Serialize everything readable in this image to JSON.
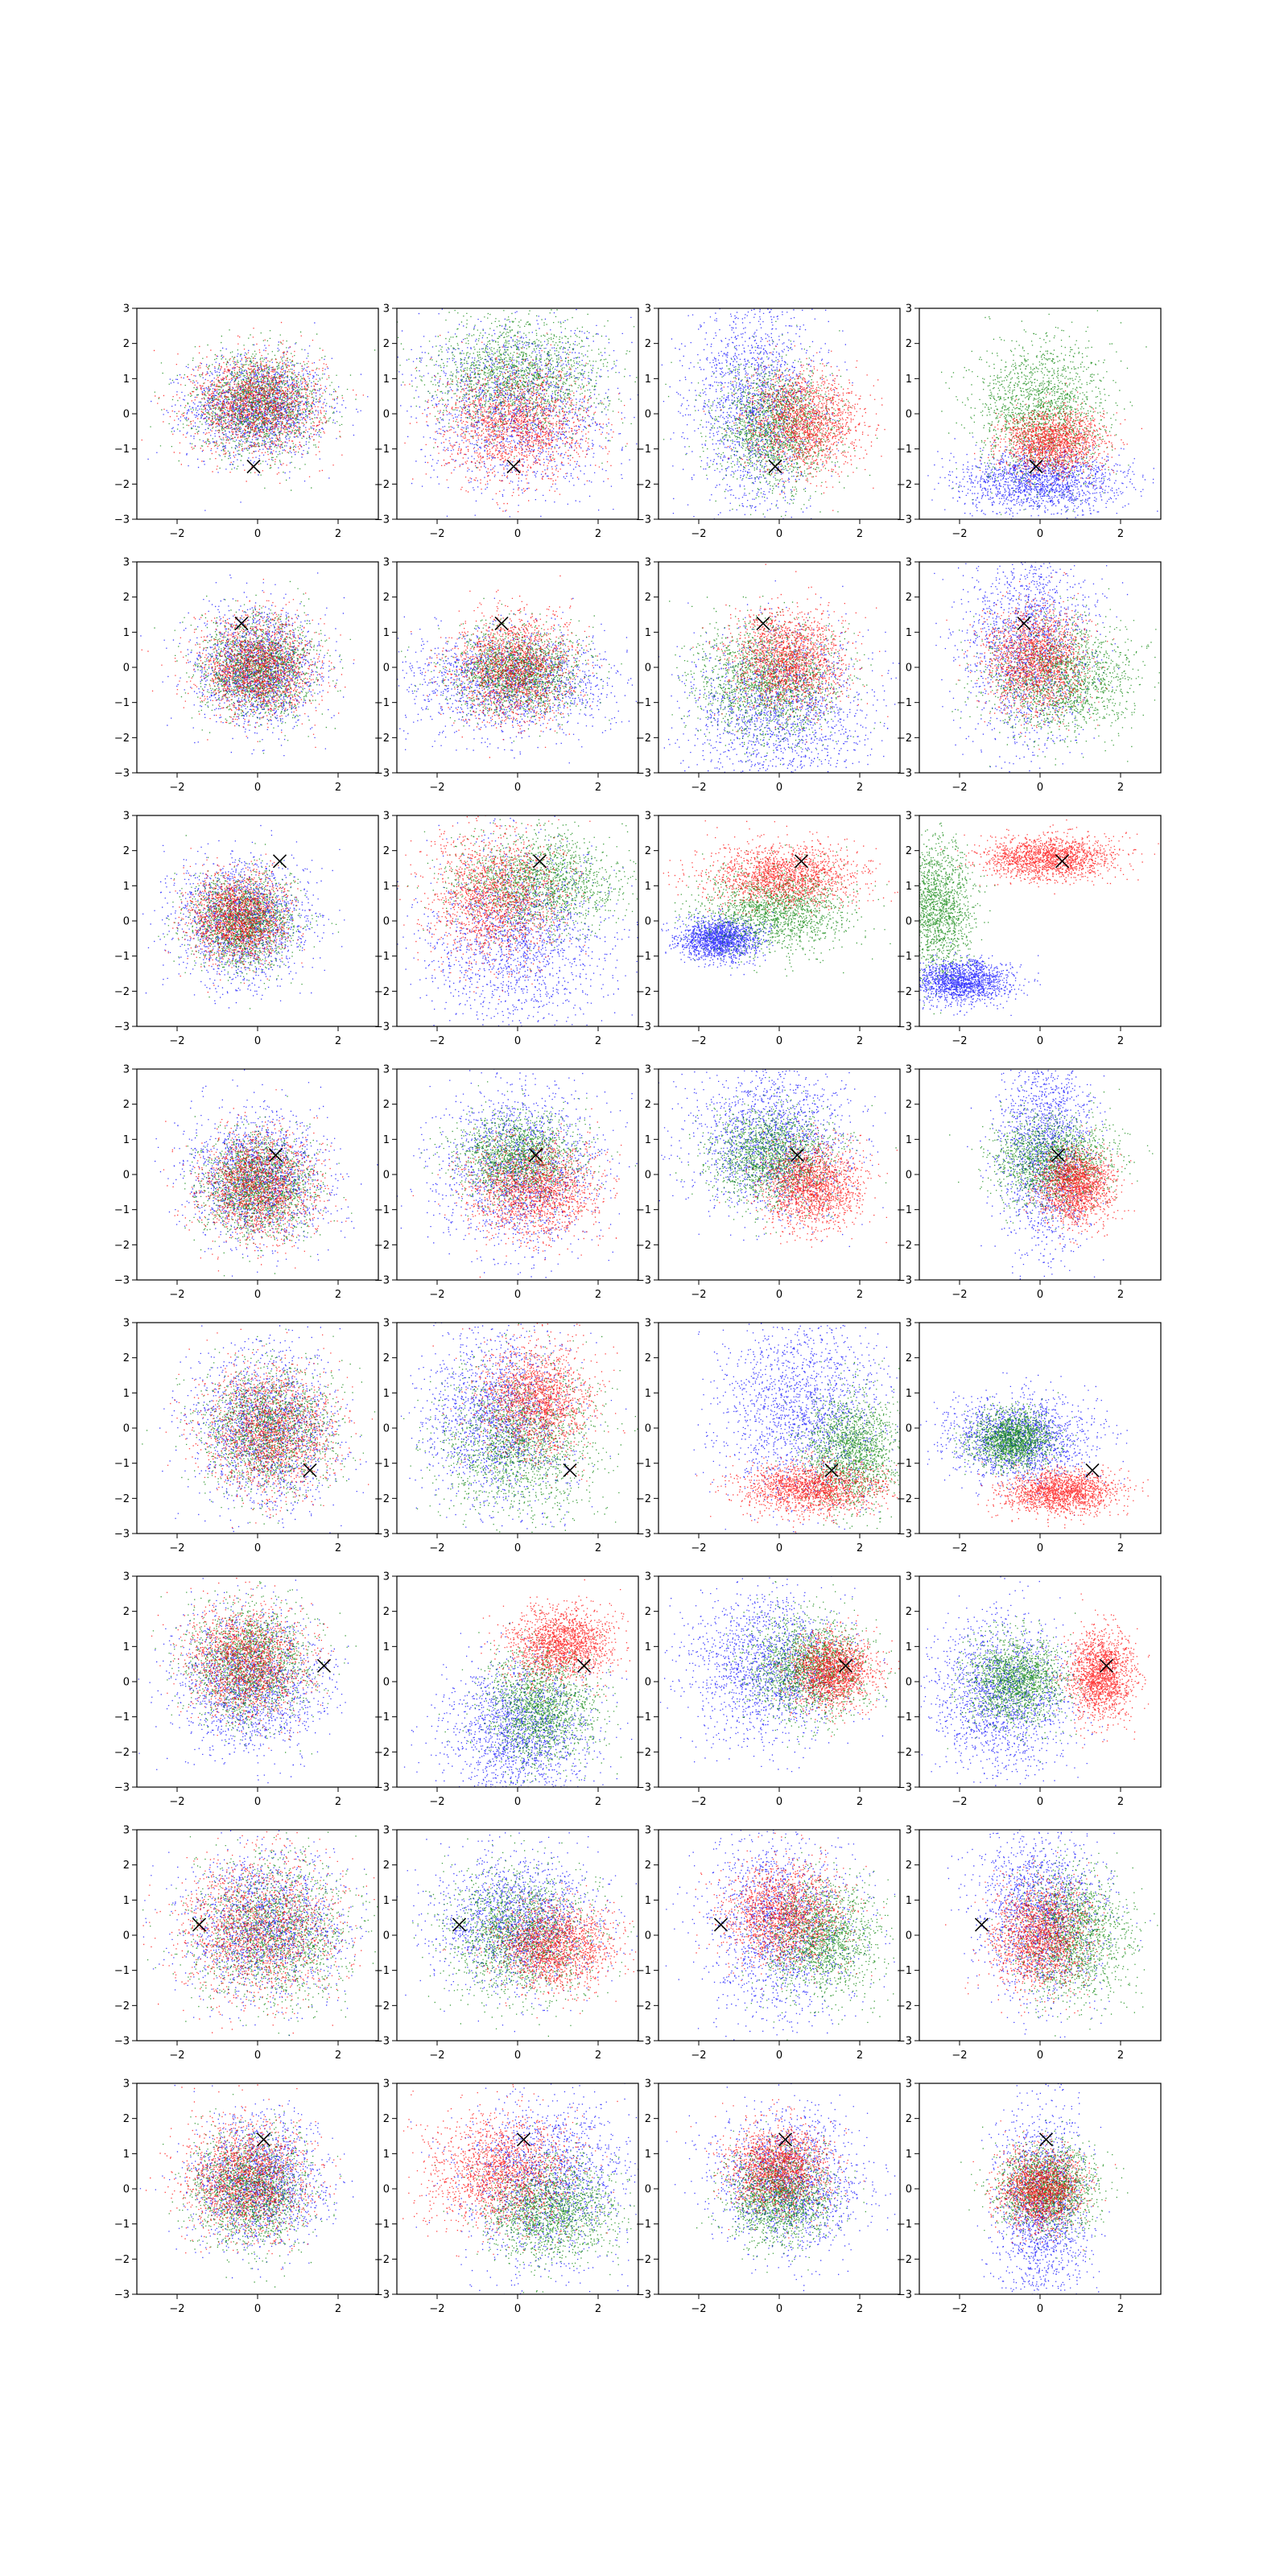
{
  "figure": {
    "rows": 8,
    "cols": 4,
    "dots_per_subplot": 5000
  },
  "chart_data": {
    "type": "scatter",
    "grid": false,
    "legend": "none",
    "xlim": [
      -3,
      3
    ],
    "ylim": [
      -3,
      3
    ],
    "xticks": [
      -2,
      0,
      2
    ],
    "yticks": [
      -3,
      -2,
      -1,
      0,
      1,
      2,
      3
    ],
    "colors": [
      "#0000ff",
      "#008000",
      "#ff0000"
    ],
    "marker_color": "#000000",
    "rows": [
      {
        "marker": [
          -0.1,
          -1.5
        ],
        "panels": [
          [
            [
              0.0,
              0.2,
              0.85,
              0.7,
              0
            ],
            [
              0.0,
              0.3,
              0.8,
              0.7,
              0
            ],
            [
              0.0,
              0.3,
              0.8,
              0.7,
              0
            ]
          ],
          [
            [
              0.0,
              0.2,
              1.2,
              1.2,
              0
            ],
            [
              0.0,
              1.1,
              1.1,
              0.8,
              0
            ],
            [
              0.0,
              -0.3,
              0.9,
              0.8,
              0
            ]
          ],
          [
            [
              -0.6,
              0.3,
              0.8,
              1.5,
              0
            ],
            [
              -0.1,
              -0.4,
              0.75,
              0.9,
              0
            ],
            [
              0.6,
              -0.2,
              0.7,
              0.7,
              0
            ]
          ],
          [
            [
              0.0,
              -1.9,
              1.0,
              0.45,
              0
            ],
            [
              0.0,
              0.1,
              0.8,
              1.0,
              0
            ],
            [
              0.3,
              -0.8,
              0.6,
              0.45,
              0
            ]
          ]
        ]
      },
      {
        "marker": [
          -0.4,
          1.25
        ],
        "panels": [
          [
            [
              0.0,
              0.0,
              0.75,
              0.8,
              0
            ],
            [
              0.0,
              0.0,
              0.7,
              0.7,
              0
            ],
            [
              0.0,
              0.0,
              0.7,
              0.7,
              0
            ]
          ],
          [
            [
              -0.2,
              -0.4,
              1.3,
              0.75,
              0
            ],
            [
              0.0,
              -0.1,
              0.8,
              0.6,
              0
            ],
            [
              -0.1,
              0.0,
              0.75,
              0.75,
              0
            ]
          ],
          [
            [
              0.0,
              -1.1,
              1.1,
              1.1,
              0
            ],
            [
              -0.3,
              -0.4,
              0.9,
              0.8,
              0
            ],
            [
              0.2,
              0.2,
              0.7,
              0.7,
              0
            ]
          ],
          [
            [
              -0.3,
              0.6,
              0.8,
              1.5,
              0
            ],
            [
              0.5,
              -0.3,
              0.9,
              0.8,
              0
            ],
            [
              -0.1,
              0.2,
              0.6,
              0.75,
              0
            ]
          ]
        ]
      },
      {
        "marker": [
          0.55,
          1.7
        ],
        "panels": [
          [
            [
              -0.4,
              0.0,
              0.85,
              0.85,
              0
            ],
            [
              -0.4,
              0.0,
              0.65,
              0.65,
              0
            ],
            [
              -0.5,
              0.1,
              0.6,
              0.6,
              0
            ]
          ],
          [
            [
              0.0,
              -0.5,
              1.1,
              1.3,
              0
            ],
            [
              0.5,
              1.1,
              1.0,
              0.7,
              0
            ],
            [
              -0.6,
              0.7,
              0.8,
              0.9,
              0
            ]
          ],
          [
            [
              -1.5,
              -0.5,
              0.5,
              0.3,
              0
            ],
            [
              -0.1,
              0.3,
              0.9,
              0.6,
              0
            ],
            [
              0.1,
              1.3,
              0.95,
              0.45,
              0
            ]
          ],
          [
            [
              -2.0,
              -1.7,
              0.6,
              0.3,
              0
            ],
            [
              -2.6,
              0.4,
              0.45,
              0.9,
              0
            ],
            [
              0.2,
              1.8,
              0.8,
              0.3,
              0
            ]
          ]
        ]
      },
      {
        "marker": [
          0.45,
          0.55
        ],
        "panels": [
          [
            [
              0.0,
              -0.1,
              0.85,
              0.9,
              0
            ],
            [
              0.0,
              -0.3,
              0.7,
              0.7,
              0
            ],
            [
              0.0,
              -0.3,
              0.7,
              0.75,
              0
            ]
          ],
          [
            [
              0.0,
              0.2,
              1.0,
              1.2,
              0
            ],
            [
              0.0,
              0.5,
              0.75,
              0.6,
              0
            ],
            [
              0.4,
              -0.4,
              0.8,
              0.7,
              0
            ]
          ],
          [
            [
              -0.2,
              1.0,
              1.0,
              1.0,
              0
            ],
            [
              -0.2,
              0.5,
              0.75,
              0.7,
              0
            ],
            [
              0.8,
              -0.3,
              0.6,
              0.6,
              0
            ]
          ],
          [
            [
              0.1,
              0.8,
              0.6,
              1.5,
              0
            ],
            [
              0.3,
              0.4,
              0.75,
              0.6,
              0
            ],
            [
              0.9,
              -0.3,
              0.45,
              0.5,
              0
            ]
          ]
        ]
      },
      {
        "marker": [
          1.3,
          -1.2
        ],
        "panels": [
          [
            [
              0.2,
              0.0,
              0.9,
              1.1,
              0
            ],
            [
              0.3,
              0.0,
              0.8,
              0.9,
              0
            ],
            [
              0.3,
              0.0,
              0.8,
              0.9,
              0
            ]
          ],
          [
            [
              -0.5,
              0.3,
              0.9,
              1.2,
              0
            ],
            [
              0.0,
              -0.4,
              1.0,
              1.0,
              0
            ],
            [
              0.5,
              0.8,
              0.7,
              0.8,
              0
            ]
          ],
          [
            [
              0.6,
              0.5,
              1.0,
              1.3,
              0
            ],
            [
              1.8,
              -0.6,
              0.6,
              0.8,
              0
            ],
            [
              0.8,
              -1.7,
              0.9,
              0.35,
              0
            ]
          ],
          [
            [
              -0.5,
              -0.3,
              0.9,
              0.6,
              0
            ],
            [
              -0.7,
              -0.3,
              0.5,
              0.4,
              0
            ],
            [
              0.5,
              -1.8,
              0.7,
              0.3,
              0
            ]
          ]
        ]
      },
      {
        "marker": [
          1.65,
          0.45
        ],
        "panels": [
          [
            [
              -0.2,
              0.0,
              0.9,
              1.0,
              0
            ],
            [
              -0.2,
              0.5,
              0.75,
              0.8,
              0
            ],
            [
              -0.3,
              0.6,
              0.75,
              0.8,
              0
            ]
          ],
          [
            [
              0.0,
              -1.4,
              0.9,
              1.0,
              0
            ],
            [
              0.6,
              -0.7,
              0.7,
              0.8,
              0
            ],
            [
              1.1,
              1.1,
              0.65,
              0.5,
              0
            ]
          ],
          [
            [
              -0.3,
              0.4,
              1.0,
              1.0,
              0
            ],
            [
              0.7,
              0.4,
              0.75,
              0.7,
              0
            ],
            [
              1.3,
              0.3,
              0.5,
              0.5,
              0
            ]
          ],
          [
            [
              -1.0,
              -0.4,
              0.9,
              1.1,
              0
            ],
            [
              -0.6,
              0.0,
              0.6,
              0.6,
              0
            ],
            [
              1.5,
              0.2,
              0.4,
              0.6,
              0
            ]
          ]
        ]
      },
      {
        "marker": [
          -1.45,
          0.3
        ],
        "panels": [
          [
            [
              0.2,
              0.3,
              1.0,
              1.0,
              0
            ],
            [
              0.3,
              0.1,
              1.0,
              1.0,
              0
            ],
            [
              0.0,
              0.2,
              1.0,
              1.0,
              0
            ]
          ],
          [
            [
              0.0,
              0.4,
              1.0,
              0.9,
              0
            ],
            [
              0.0,
              0.0,
              0.9,
              0.9,
              0
            ],
            [
              0.9,
              -0.3,
              0.7,
              0.6,
              0
            ]
          ],
          [
            [
              0.0,
              0.3,
              0.95,
              1.3,
              0
            ],
            [
              1.0,
              -0.1,
              0.7,
              0.8,
              0
            ],
            [
              0.1,
              0.6,
              0.7,
              0.7,
              0
            ]
          ],
          [
            [
              0.0,
              0.6,
              0.8,
              1.2,
              0
            ],
            [
              0.8,
              0.0,
              0.7,
              0.9,
              0
            ],
            [
              0.0,
              0.0,
              0.6,
              0.75,
              0
            ]
          ]
        ]
      },
      {
        "marker": [
          0.15,
          1.4
        ],
        "panels": [
          [
            [
              0.0,
              0.2,
              0.8,
              0.9,
              0
            ],
            [
              -0.2,
              0.0,
              0.7,
              0.8,
              0
            ],
            [
              -0.3,
              0.3,
              0.75,
              0.8,
              0
            ]
          ],
          [
            [
              0.7,
              0.2,
              1.0,
              1.2,
              0
            ],
            [
              0.8,
              -0.6,
              0.8,
              0.7,
              0
            ],
            [
              -0.4,
              0.5,
              0.9,
              0.8,
              0
            ]
          ],
          [
            [
              0.2,
              0.2,
              0.9,
              1.0,
              0
            ],
            [
              0.0,
              -0.2,
              0.65,
              0.65,
              0
            ],
            [
              0.0,
              0.6,
              0.6,
              0.6,
              0
            ]
          ],
          [
            [
              0.0,
              -0.6,
              0.55,
              1.4,
              0
            ],
            [
              0.2,
              0.0,
              0.6,
              0.6,
              0
            ],
            [
              0.0,
              0.0,
              0.5,
              0.55,
              0
            ]
          ]
        ]
      }
    ]
  }
}
